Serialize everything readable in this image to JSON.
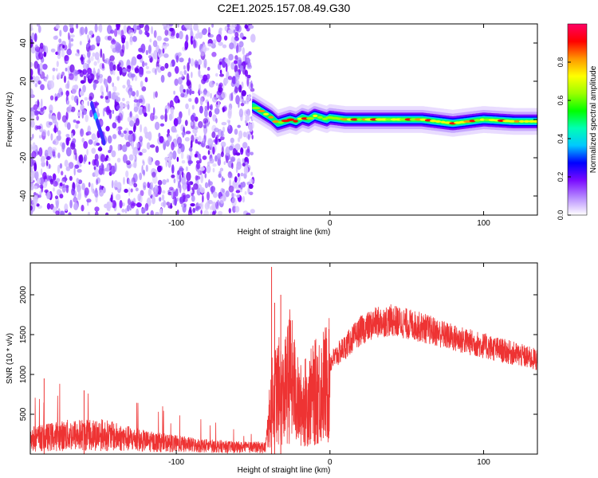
{
  "title": "C2E1.2025.157.08.49.G30",
  "chart_data": [
    {
      "type": "heatmap",
      "xlabel": "Height of straight line (km)",
      "ylabel": "Frequency (Hz)",
      "xlim": [
        -195,
        135
      ],
      "ylim": [
        -50,
        50
      ],
      "xticks": [
        -100,
        0,
        100
      ],
      "yticks": [
        -40,
        -20,
        0,
        20,
        40
      ],
      "xtick_labels": [
        "-100",
        "0",
        "100"
      ],
      "ytick_labels": [
        "-40",
        "-20",
        "0",
        "20",
        "40"
      ],
      "noise_region": [
        -195,
        -50
      ],
      "ridge": {
        "x": [
          -50,
          -46,
          -42,
          -38,
          -34,
          -30,
          -26,
          -22,
          -18,
          -14,
          -10,
          -6,
          -2,
          0,
          10,
          20,
          40,
          60,
          80,
          100,
          120,
          135
        ],
        "frequency": [
          7,
          5,
          3,
          1,
          -2,
          -1,
          0,
          -1,
          1,
          0,
          2,
          1,
          0,
          1,
          0,
          0,
          0,
          0,
          -2,
          0,
          -1,
          -1
        ]
      },
      "streak": {
        "x": [
          -155,
          -147
        ],
        "frequency": [
          8,
          -12
        ]
      },
      "colorbar": {
        "label": "Normalized spectral amplitude",
        "range": [
          0,
          1
        ],
        "ticks": [
          0.0,
          0.2,
          0.4,
          0.6,
          0.8
        ],
        "tick_labels": [
          "0.0",
          "0.2",
          "0.4",
          "0.6",
          "0.8"
        ],
        "colors": [
          "#ffffff",
          "#b78cff",
          "#7a0bff",
          "#0000ff",
          "#00c8ff",
          "#00ffb4",
          "#00ff00",
          "#9bff00",
          "#ffff00",
          "#ff9600",
          "#ff0000",
          "#ff0064"
        ]
      }
    },
    {
      "type": "line",
      "xlabel": "Height of straight line (km)",
      "ylabel": "SNR (10 * v/v)",
      "xlim": [
        -195,
        135
      ],
      "ylim": [
        0,
        2400
      ],
      "xticks": [
        -100,
        0,
        100
      ],
      "yticks": [
        500,
        1000,
        1500,
        2000
      ],
      "xtick_labels": [
        "-100",
        "0",
        "100"
      ],
      "ytick_labels": [
        "500",
        "1000",
        "1500",
        "2000"
      ],
      "color": "#ee3333",
      "envelope": {
        "x": [
          -195,
          -170,
          -150,
          -120,
          -90,
          -60,
          -42,
          -38,
          -34,
          -30,
          -26,
          -20,
          -14,
          -8,
          0,
          10,
          20,
          30,
          40,
          60,
          80,
          100,
          120,
          135
        ],
        "y": [
          200,
          250,
          260,
          170,
          120,
          90,
          90,
          800,
          1000,
          900,
          1250,
          750,
          850,
          1000,
          1150,
          1350,
          1550,
          1650,
          1680,
          1590,
          1460,
          1360,
          1260,
          1180
        ]
      },
      "spikes": [
        {
          "x": -38,
          "y": 2350
        },
        {
          "x": -36,
          "y": 1900
        },
        {
          "x": -32,
          "y": 2000
        },
        {
          "x": -186,
          "y": 950
        },
        {
          "x": -160,
          "y": 800
        }
      ]
    }
  ]
}
